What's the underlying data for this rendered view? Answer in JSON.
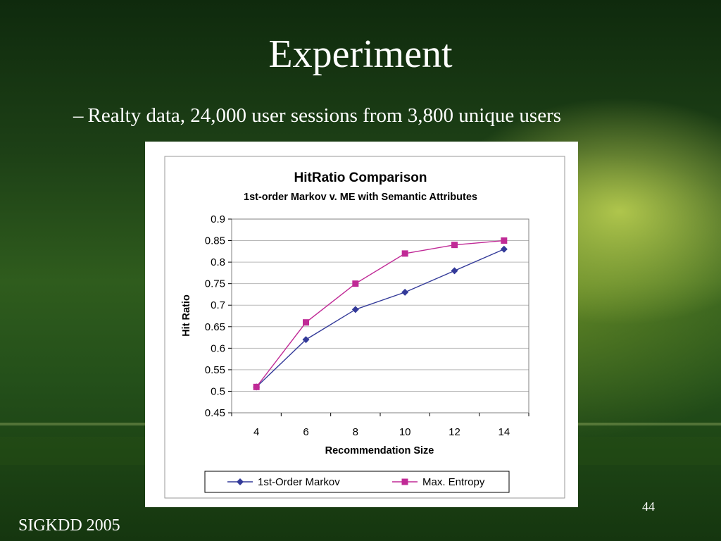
{
  "slide": {
    "title": "Experiment",
    "bullet_dash": "–",
    "bullet_text": "Realty data, 24,000 user sessions from 3,800 unique users",
    "footer": "SIGKDD 2005",
    "page_number": "44"
  },
  "colors": {
    "series_markov": "#333a99",
    "series_max_entropy": "#c02a96",
    "gridline": "#b8b8b8",
    "frame_border": "#9a9a9a"
  },
  "chart_data": {
    "type": "line",
    "title": "HitRatio Comparison",
    "subtitle": "1st-order Markov v. ME with Semantic Attributes",
    "xlabel": "Recommendation Size",
    "ylabel": "Hit Ratio",
    "x": [
      4,
      6,
      8,
      10,
      12,
      14
    ],
    "ylim": [
      0.45,
      0.9
    ],
    "yticks": [
      "0.45",
      "0.5",
      "0.55",
      "0.6",
      "0.65",
      "0.7",
      "0.75",
      "0.8",
      "0.85",
      "0.9"
    ],
    "xticks": [
      "4",
      "6",
      "8",
      "10",
      "12",
      "14"
    ],
    "grid": true,
    "legend_position": "bottom",
    "series": [
      {
        "name": "1st-Order Markov",
        "marker": "diamond",
        "values": [
          0.51,
          0.62,
          0.69,
          0.73,
          0.78,
          0.83
        ]
      },
      {
        "name": "Max. Entropy",
        "marker": "square",
        "values": [
          0.51,
          0.66,
          0.75,
          0.82,
          0.84,
          0.85
        ]
      }
    ]
  }
}
